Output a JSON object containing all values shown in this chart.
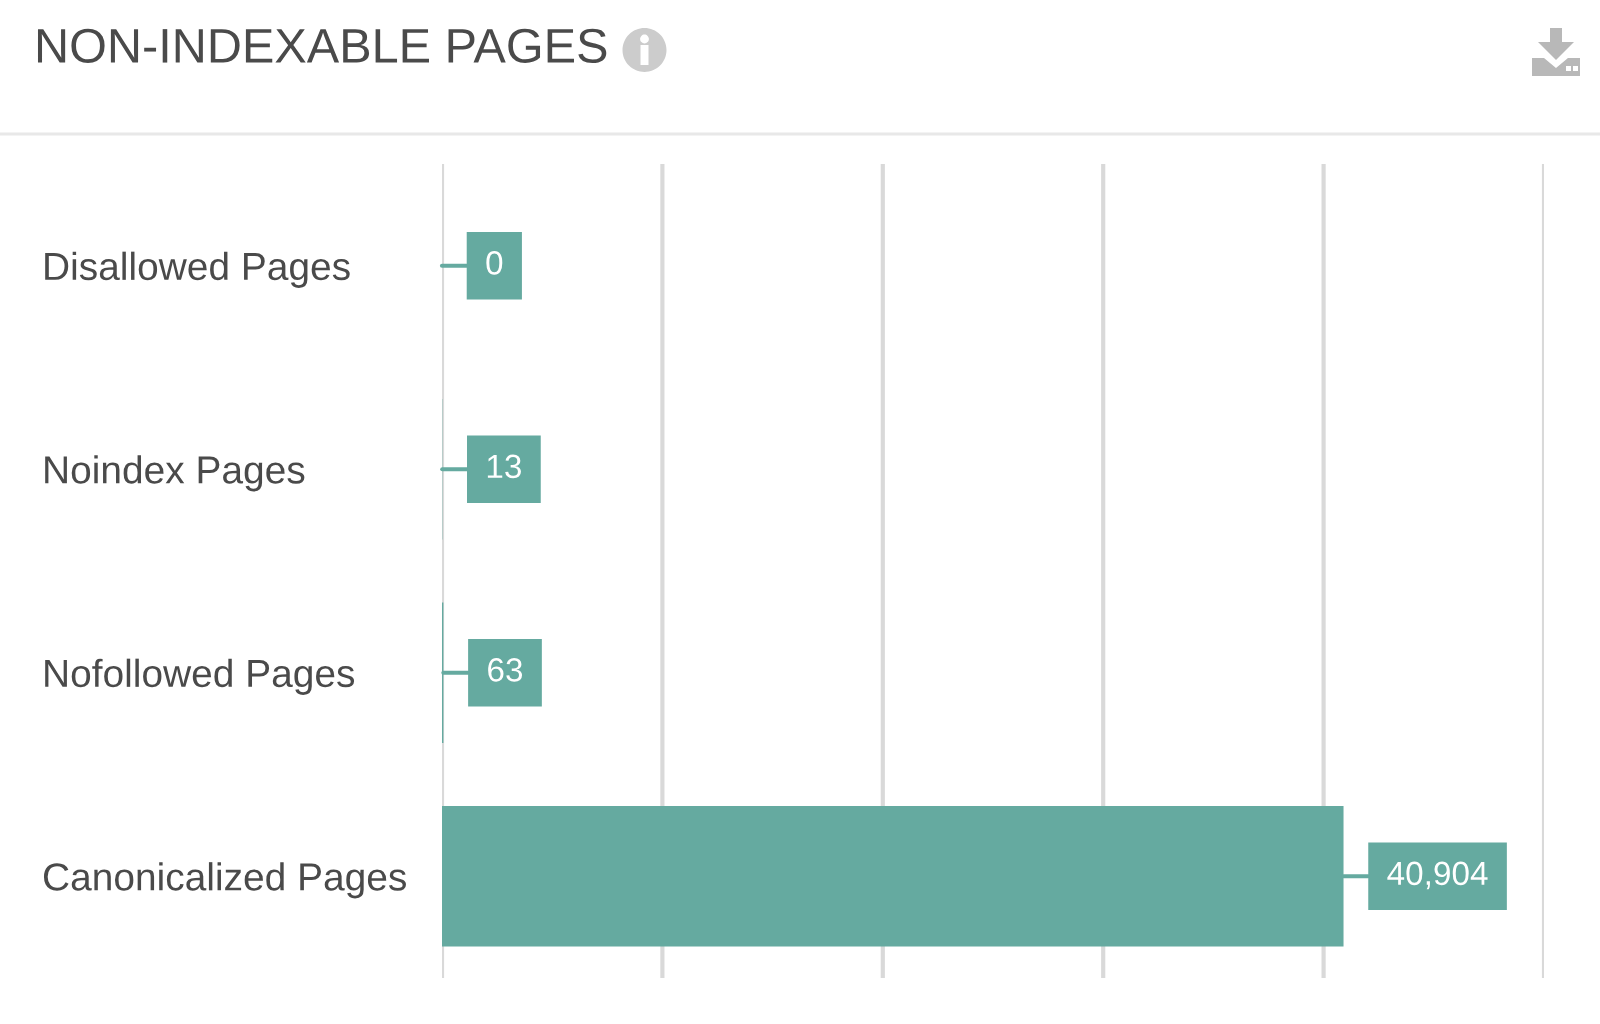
{
  "chart_data": {
    "type": "bar",
    "orientation": "horizontal",
    "title": "NON-INDEXABLE PAGES",
    "categories": [
      "Disallowed Pages",
      "Noindex Pages",
      "Nofollowed Pages",
      "Canonicalized Pages"
    ],
    "values": [
      0,
      13,
      63,
      40904
    ],
    "value_labels": [
      "0",
      "13",
      "63",
      "40,904"
    ],
    "color": "#65aaa0",
    "xlim": [
      0,
      50000
    ],
    "xticks": [
      {
        "value": 0,
        "label": null
      },
      {
        "value": 10000,
        "label": null
      },
      {
        "value": 20000,
        "label": null
      },
      {
        "value": 30000,
        "label": null
      },
      {
        "value": 40000,
        "label": null
      },
      {
        "value": 50000,
        "label": null
      }
    ],
    "grid": "x",
    "tick_labels": "y"
  }
}
